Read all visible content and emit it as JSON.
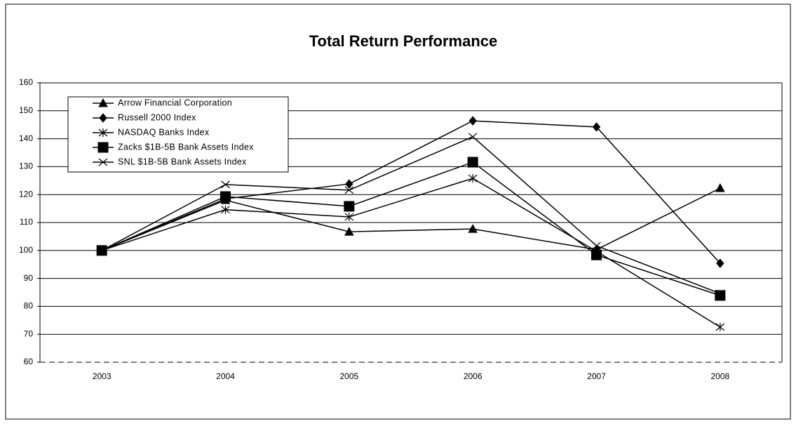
{
  "chart_data": {
    "type": "line",
    "title": "Total Return Performance",
    "categories": [
      "2003",
      "2004",
      "2005",
      "2006",
      "2007",
      "2008"
    ],
    "series": [
      {
        "name": "Arrow Financial Corporation",
        "color": "#000000",
        "marker": "triangle",
        "values": [
          100,
          118,
          106.7,
          107.7,
          100.3,
          122.3
        ]
      },
      {
        "name": "Russell 2000 Index",
        "color": "#000000",
        "marker": "diamond",
        "values": [
          100,
          118.5,
          123.8,
          146.4,
          144.2,
          95.4
        ]
      },
      {
        "name": "NASDAQ Banks Index",
        "color": "#000000",
        "marker": "asterisk",
        "values": [
          100,
          114.6,
          112,
          125.8,
          99.7,
          72.6
        ]
      },
      {
        "name": "Zacks $1B-5B Bank Assets Index",
        "color": "#000000",
        "marker": "square",
        "values": [
          100,
          119.3,
          115.8,
          131.6,
          98.4,
          83.9
        ]
      },
      {
        "name": "SNL $1B-5B Bank Assets Index",
        "color": "#000000",
        "marker": "x",
        "values": [
          100,
          123.6,
          121.6,
          140.7,
          101.7,
          84.6
        ]
      }
    ],
    "ylim": [
      60,
      160
    ],
    "yticks": [
      60,
      70,
      80,
      90,
      100,
      110,
      120,
      130,
      140,
      150,
      160
    ],
    "grid": true,
    "legend": "upper left"
  }
}
